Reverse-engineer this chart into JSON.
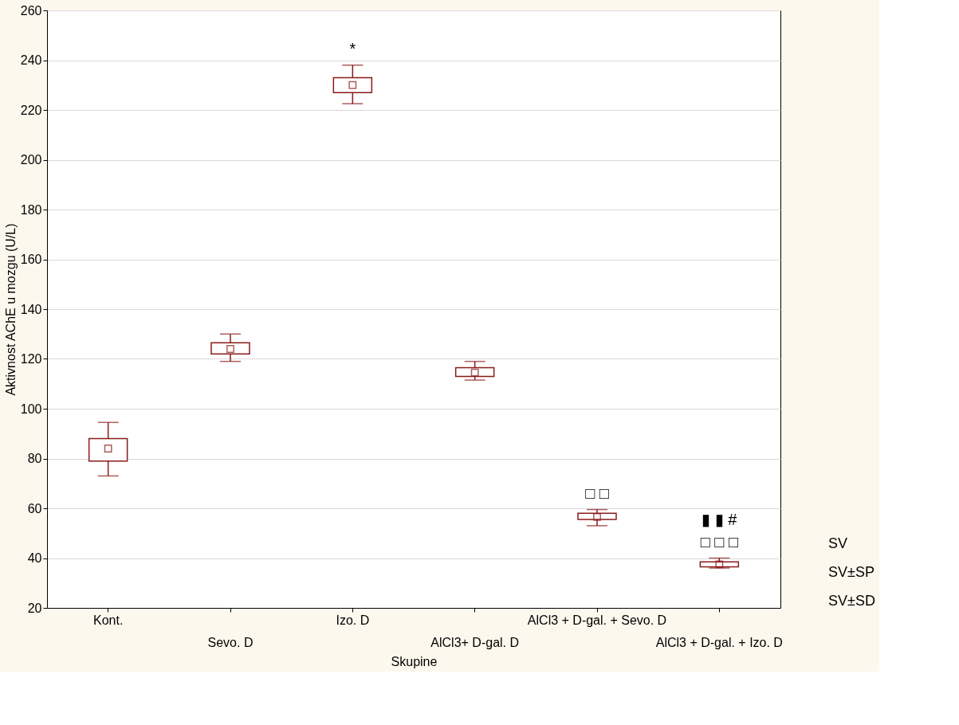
{
  "chart_data": {
    "type": "box",
    "xlabel": "Skupine",
    "ylabel": "Aktivnost AChE u mozgu (U/L)",
    "categories": [
      "Kont.",
      "Sevo. D",
      "Izo. D",
      "AlCl3+ D-gal. D",
      "AlCl3 + D-gal. + Sevo. D",
      "AlCl3 + D-gal. + Izo. D"
    ],
    "series": [
      {
        "color": "#8b1a1a",
        "boxes": [
          {
            "low": 73,
            "q1": 79,
            "mean": 84,
            "q3": 88,
            "high": 94.5
          },
          {
            "low": 119,
            "q1": 122,
            "mean": 124,
            "q3": 126.5,
            "high": 130
          },
          {
            "low": 222.5,
            "q1": 227,
            "mean": 230,
            "q3": 233,
            "high": 238
          },
          {
            "low": 111.5,
            "q1": 113,
            "mean": 114.5,
            "q3": 116.5,
            "high": 119
          },
          {
            "low": 53,
            "q1": 55.5,
            "mean": 56.5,
            "q3": 58,
            "high": 59.5
          },
          {
            "low": 36,
            "q1": 36.5,
            "mean": 37.5,
            "q3": 38.5,
            "high": 40
          }
        ]
      }
    ],
    "ylim": [
      20,
      260
    ],
    "yticks": [
      20,
      40,
      60,
      80,
      100,
      120,
      140,
      160,
      180,
      200,
      220,
      240,
      260
    ],
    "grid": "y",
    "annotations": [
      "*",
      "□ □",
      "▮ ▮ #",
      "□ □ □",
      "SV",
      "SV±SP",
      "SV±SD"
    ]
  }
}
